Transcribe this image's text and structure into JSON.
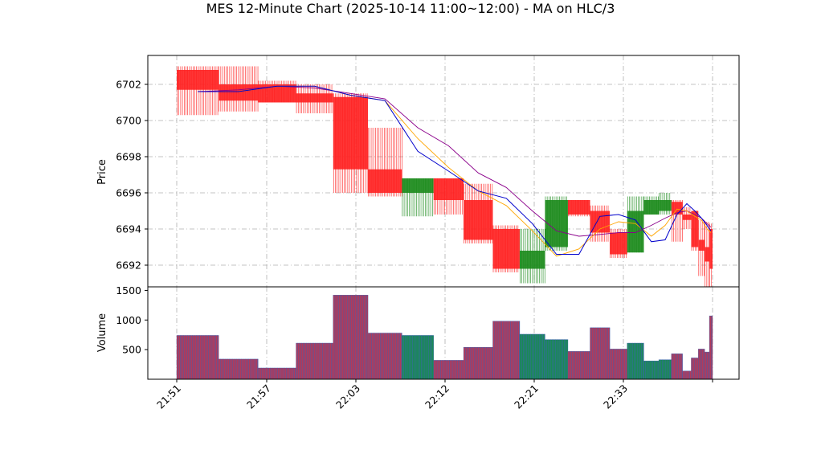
{
  "chart_data": {
    "type": "candlestick-hlc-bars",
    "title": "MES 12-Minute Chart (2025-10-14 11:00~12:00) - MA on HLC/3",
    "price_ylabel": "Price",
    "volume_ylabel": "Volume",
    "price_ylim": [
      6690.8,
      6703.6
    ],
    "volume_ylim": [
      0,
      1560
    ],
    "price_ticks": [
      6692,
      6694,
      6696,
      6698,
      6700,
      6702
    ],
    "volume_ticks": [
      500,
      1000,
      1500
    ],
    "x_ticks": [
      "21:51",
      "21:57",
      "22:03",
      "22:12",
      "22:21",
      "22:33",
      ""
    ],
    "grid": true,
    "colors": {
      "up": "#1a8a1a",
      "down": "#ff2020",
      "ma_fast": "#0000cc",
      "ma_mid": "#ffa500",
      "ma_slow": "#8b008b"
    },
    "bars": [
      {
        "o": 6702.8,
        "c": 6701.7,
        "h": 6703.0,
        "l": 6700.3,
        "v": 740
      },
      {
        "o": 6702.0,
        "c": 6701.1,
        "h": 6703.0,
        "l": 6700.5,
        "v": 340
      },
      {
        "o": 6702.0,
        "c": 6701.0,
        "h": 6702.2,
        "l": 6701.0,
        "v": 190
      },
      {
        "o": 6701.5,
        "c": 6701.0,
        "h": 6702.0,
        "l": 6700.4,
        "v": 610
      },
      {
        "o": 6701.3,
        "c": 6697.3,
        "h": 6701.5,
        "l": 6696.0,
        "v": 1420
      },
      {
        "o": 6697.3,
        "c": 6696.0,
        "h": 6699.6,
        "l": 6695.8,
        "v": 780
      },
      {
        "o": 6696.0,
        "c": 6696.8,
        "h": 6696.8,
        "l": 6694.7,
        "v": 740
      },
      {
        "o": 6696.8,
        "c": 6695.6,
        "h": 6696.8,
        "l": 6694.8,
        "v": 320
      },
      {
        "o": 6695.6,
        "c": 6693.4,
        "h": 6696.5,
        "l": 6693.2,
        "v": 540
      },
      {
        "o": 6694.0,
        "c": 6691.8,
        "h": 6694.2,
        "l": 6691.6,
        "v": 980
      },
      {
        "o": 6691.8,
        "c": 6692.8,
        "h": 6694.0,
        "l": 6691.0,
        "v": 760
      },
      {
        "o": 6693.0,
        "c": 6695.6,
        "h": 6695.8,
        "l": 6692.8,
        "v": 670
      },
      {
        "o": 6695.6,
        "c": 6694.8,
        "h": 6695.6,
        "l": 6694.7,
        "v": 470
      },
      {
        "o": 6695.0,
        "c": 6693.8,
        "h": 6695.3,
        "l": 6693.3,
        "v": 870
      },
      {
        "o": 6693.8,
        "c": 6692.6,
        "h": 6694.0,
        "l": 6692.4,
        "v": 510
      },
      {
        "o": 6692.7,
        "c": 6695.0,
        "h": 6695.8,
        "l": 6692.7,
        "v": 610
      },
      {
        "o": 6694.8,
        "c": 6695.6,
        "h": 6695.8,
        "l": 6694.8,
        "v": 310
      },
      {
        "o": 6695.0,
        "c": 6695.6,
        "h": 6696.0,
        "l": 6694.8,
        "v": 330
      },
      {
        "o": 6695.5,
        "c": 6694.8,
        "h": 6695.6,
        "l": 6693.3,
        "v": 430
      },
      {
        "o": 6694.8,
        "c": 6694.5,
        "h": 6695.2,
        "l": 6694.0,
        "v": 140
      },
      {
        "o": 6695.0,
        "c": 6693.0,
        "h": 6695.0,
        "l": 6692.8,
        "v": 360
      },
      {
        "o": 6693.4,
        "c": 6692.8,
        "h": 6694.5,
        "l": 6691.4,
        "v": 510
      },
      {
        "o": 6693.0,
        "c": 6692.2,
        "h": 6694.4,
        "l": 6690.8,
        "v": 460
      },
      {
        "o": 6694.0,
        "c": 6691.8,
        "h": 6694.3,
        "l": 6690.8,
        "v": 1070
      }
    ],
    "ma_fast": [
      6701.6,
      6701.6,
      6701.9,
      6701.9,
      6701.4,
      6701.1,
      6698.3,
      6697.2,
      6696.1,
      6695.7,
      6694.3,
      6692.6,
      6692.6,
      6694.7,
      6694.8,
      6694.5,
      6693.3,
      6693.4,
      6694.8,
      6695.4,
      6695.0,
      6694.6,
      6694.2,
      6693.9
    ],
    "ma_mid": [
      6701.6,
      6701.6,
      6701.9,
      6701.9,
      6701.4,
      6701.1,
      6699.0,
      6697.4,
      6696.1,
      6695.3,
      6693.9,
      6692.5,
      6692.9,
      6694.0,
      6694.4,
      6694.3,
      6693.6,
      6694.2,
      6695.1,
      6695.0,
      6694.7,
      6694.5,
      6694.0,
      6693.8
    ],
    "ma_slow": [
      6701.6,
      6701.7,
      6701.9,
      6701.8,
      6701.5,
      6701.2,
      6699.6,
      6698.6,
      6697.1,
      6696.3,
      6695.0,
      6693.9,
      6693.6,
      6693.7,
      6693.8,
      6693.8,
      6694.2,
      6694.6,
      6694.9,
      6695.0,
      6694.8,
      6694.6,
      6694.3,
      6694.1
    ]
  }
}
